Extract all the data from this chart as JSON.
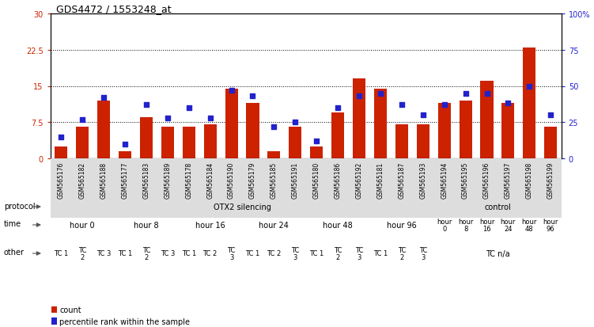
{
  "title": "GDS4472 / 1553248_at",
  "samples": [
    "GSM565176",
    "GSM565182",
    "GSM565188",
    "GSM565177",
    "GSM565183",
    "GSM565189",
    "GSM565178",
    "GSM565184",
    "GSM565190",
    "GSM565179",
    "GSM565185",
    "GSM565191",
    "GSM565180",
    "GSM565186",
    "GSM565192",
    "GSM565181",
    "GSM565187",
    "GSM565193",
    "GSM565194",
    "GSM565195",
    "GSM565196",
    "GSM565197",
    "GSM565198",
    "GSM565199"
  ],
  "counts": [
    2.5,
    6.5,
    12.0,
    1.5,
    8.5,
    6.5,
    6.5,
    7.0,
    14.5,
    11.5,
    1.5,
    6.5,
    2.5,
    9.5,
    16.5,
    14.5,
    7.0,
    7.0,
    11.5,
    12.0,
    16.0,
    11.5,
    23.0,
    6.5
  ],
  "percentiles": [
    15,
    27,
    42,
    10,
    37,
    28,
    35,
    28,
    47,
    43,
    22,
    25,
    12,
    35,
    43,
    45,
    37,
    30,
    37,
    45,
    45,
    38,
    50,
    30
  ],
  "ylim_left": [
    0,
    30
  ],
  "ylim_right": [
    0,
    100
  ],
  "yticks_left": [
    0,
    7.5,
    15,
    22.5,
    30
  ],
  "yticks_right": [
    0,
    25,
    50,
    75,
    100
  ],
  "ytick_labels_left": [
    "0",
    "7.5",
    "15",
    "22.5",
    "30"
  ],
  "ytick_labels_right": [
    "0",
    "25",
    "50",
    "75",
    "100%"
  ],
  "bar_color": "#cc2200",
  "dot_color": "#2222cc",
  "protocol_row": {
    "label": "protocol",
    "groups": [
      {
        "text": "OTX2 silencing",
        "start": 0,
        "end": 18,
        "color": "#aaddaa"
      },
      {
        "text": "control",
        "start": 18,
        "end": 24,
        "color": "#44cc44"
      }
    ]
  },
  "time_row": {
    "label": "time",
    "groups": [
      {
        "text": "hour 0",
        "start": 0,
        "end": 3,
        "color": "#e8e8f8"
      },
      {
        "text": "hour 8",
        "start": 3,
        "end": 6,
        "color": "#c8c8e8"
      },
      {
        "text": "hour 16",
        "start": 6,
        "end": 9,
        "color": "#a8a8d8"
      },
      {
        "text": "hour 24",
        "start": 9,
        "end": 12,
        "color": "#8888c8"
      },
      {
        "text": "hour 48",
        "start": 12,
        "end": 15,
        "color": "#a8a8d8"
      },
      {
        "text": "hour 96",
        "start": 15,
        "end": 18,
        "color": "#8888c8"
      },
      {
        "text": "hour\n0",
        "start": 18,
        "end": 19,
        "color": "#e8e8f8"
      },
      {
        "text": "hour\n8",
        "start": 19,
        "end": 20,
        "color": "#c8c8e8"
      },
      {
        "text": "hour\n16",
        "start": 20,
        "end": 21,
        "color": "#a8a8d8"
      },
      {
        "text": "hour\n24",
        "start": 21,
        "end": 22,
        "color": "#8888c8"
      },
      {
        "text": "hour\n48",
        "start": 22,
        "end": 23,
        "color": "#a8a8d8"
      },
      {
        "text": "hour\n96",
        "start": 23,
        "end": 24,
        "color": "#8888c8"
      }
    ]
  },
  "other_row": {
    "label": "other",
    "groups": [
      {
        "text": "TC 1",
        "start": 0,
        "end": 1,
        "color": "#ffdddd"
      },
      {
        "text": "TC\n2",
        "start": 1,
        "end": 2,
        "color": "#ffbbbb"
      },
      {
        "text": "TC 3",
        "start": 2,
        "end": 3,
        "color": "#ffaaaa"
      },
      {
        "text": "TC 1",
        "start": 3,
        "end": 4,
        "color": "#ffdddd"
      },
      {
        "text": "TC\n2",
        "start": 4,
        "end": 5,
        "color": "#ffbbbb"
      },
      {
        "text": "TC 3",
        "start": 5,
        "end": 6,
        "color": "#ffaaaa"
      },
      {
        "text": "TC 1",
        "start": 6,
        "end": 7,
        "color": "#ffdddd"
      },
      {
        "text": "TC 2",
        "start": 7,
        "end": 8,
        "color": "#ffbbbb"
      },
      {
        "text": "TC\n3",
        "start": 8,
        "end": 9,
        "color": "#ffaaaa"
      },
      {
        "text": "TC 1",
        "start": 9,
        "end": 10,
        "color": "#ffdddd"
      },
      {
        "text": "TC 2",
        "start": 10,
        "end": 11,
        "color": "#ffbbbb"
      },
      {
        "text": "TC\n3",
        "start": 11,
        "end": 12,
        "color": "#ffaaaa"
      },
      {
        "text": "TC 1",
        "start": 12,
        "end": 13,
        "color": "#ffdddd"
      },
      {
        "text": "TC\n2",
        "start": 13,
        "end": 14,
        "color": "#ffbbbb"
      },
      {
        "text": "TC\n3",
        "start": 14,
        "end": 15,
        "color": "#ffaaaa"
      },
      {
        "text": "TC 1",
        "start": 15,
        "end": 16,
        "color": "#ffdddd"
      },
      {
        "text": "TC\n2",
        "start": 16,
        "end": 17,
        "color": "#ffbbbb"
      },
      {
        "text": "TC\n3",
        "start": 17,
        "end": 18,
        "color": "#ffaaaa"
      },
      {
        "text": "TC n/a",
        "start": 18,
        "end": 24,
        "color": "#dd7777"
      }
    ]
  },
  "legend": [
    {
      "label": "count",
      "color": "#cc2200"
    },
    {
      "label": "percentile rank within the sample",
      "color": "#2222cc"
    }
  ]
}
